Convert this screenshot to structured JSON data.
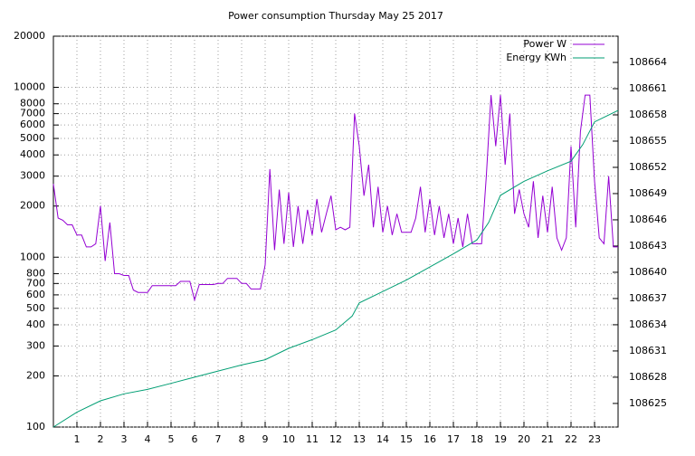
{
  "chart_data": {
    "type": "line",
    "title": "Power consumption Thursday May 25 2017",
    "xlim": [
      0,
      24
    ],
    "xticks": [
      1,
      2,
      3,
      4,
      5,
      6,
      7,
      8,
      9,
      10,
      11,
      12,
      13,
      14,
      15,
      16,
      17,
      18,
      19,
      20,
      21,
      22,
      23
    ],
    "ylim": [
      100,
      20000
    ],
    "log_y": true,
    "yticks": [
      100,
      200,
      300,
      400,
      500,
      600,
      700,
      800,
      1000,
      2000,
      3000,
      4000,
      5000,
      6000,
      7000,
      8000,
      10000,
      20000
    ],
    "y2lim": [
      108622.3,
      108667
    ],
    "y2ticks": [
      108625,
      108628,
      108631,
      108634,
      108637,
      108640,
      108643,
      108646,
      108649,
      108652,
      108655,
      108658,
      108661,
      108664
    ],
    "grid": true,
    "legend": "top right",
    "series": [
      {
        "name": "Power W",
        "color": "#9400d3",
        "x": [
          0,
          0.2,
          0.4,
          0.6,
          0.8,
          1,
          1.2,
          1.4,
          1.6,
          1.8,
          2,
          2.2,
          2.4,
          2.6,
          2.8,
          3,
          3.2,
          3.4,
          3.6,
          3.8,
          4,
          4.2,
          4.4,
          4.6,
          4.8,
          5,
          5.2,
          5.4,
          5.6,
          5.8,
          6,
          6.2,
          6.4,
          6.6,
          6.8,
          7,
          7.2,
          7.4,
          7.6,
          7.8,
          8,
          8.2,
          8.4,
          8.6,
          8.8,
          9,
          9.2,
          9.4,
          9.6,
          9.8,
          10,
          10.2,
          10.4,
          10.6,
          10.8,
          11,
          11.2,
          11.4,
          11.6,
          11.8,
          12,
          12.2,
          12.4,
          12.6,
          12.8,
          13,
          13.2,
          13.4,
          13.6,
          13.8,
          14,
          14.2,
          14.4,
          14.6,
          14.8,
          15,
          15.2,
          15.4,
          15.6,
          15.8,
          16,
          16.2,
          16.4,
          16.6,
          16.8,
          17,
          17.2,
          17.4,
          17.6,
          17.8,
          18,
          18.2,
          18.4,
          18.6,
          18.8,
          19,
          19.2,
          19.4,
          19.6,
          19.8,
          20,
          20.2,
          20.4,
          20.6,
          20.8,
          21,
          21.2,
          21.4,
          21.6,
          21.8,
          22,
          22.2,
          22.4,
          22.6,
          22.8,
          23,
          23.2,
          23.4,
          23.6,
          23.8,
          24
        ],
        "values": [
          2700,
          1700,
          1650,
          1550,
          1550,
          1350,
          1350,
          1150,
          1150,
          1200,
          2000,
          950,
          1600,
          800,
          800,
          780,
          780,
          640,
          620,
          620,
          620,
          680,
          680,
          680,
          680,
          680,
          680,
          720,
          720,
          720,
          560,
          690,
          690,
          690,
          690,
          700,
          700,
          750,
          750,
          750,
          700,
          700,
          650,
          650,
          650,
          900,
          3300,
          1100,
          2500,
          1200,
          2400,
          1150,
          2000,
          1200,
          1900,
          1350,
          2200,
          1400,
          1800,
          2300,
          1450,
          1500,
          1450,
          1500,
          7000,
          4500,
          2300,
          3500,
          1500,
          2600,
          1400,
          2000,
          1350,
          1800,
          1400,
          1400,
          1400,
          1700,
          2600,
          1400,
          2200,
          1350,
          2000,
          1300,
          1800,
          1200,
          1700,
          1150,
          1800,
          1200,
          1200,
          1200,
          3000,
          9000,
          4500,
          9000,
          3500,
          7000,
          1800,
          2500,
          1800,
          1500,
          2800,
          1300,
          2300,
          1400,
          2600,
          1300,
          1100,
          1300,
          4500,
          1500,
          5500,
          9000,
          9000,
          2800,
          1300,
          1200,
          3000,
          1150,
          1150
        ]
      },
      {
        "name": "Energy KWh",
        "color": "#009e73",
        "axis": "y2",
        "x": [
          0,
          1,
          2,
          3,
          4,
          5,
          6,
          7,
          8,
          9,
          10,
          11,
          12,
          12.7,
          13,
          14,
          15,
          16,
          17,
          18,
          18.5,
          19,
          20,
          21,
          22,
          22.5,
          23,
          24
        ],
        "values": [
          108622.3,
          108624,
          108625.3,
          108626.1,
          108626.6,
          108627.3,
          108628,
          108628.7,
          108629.4,
          108630,
          108631.3,
          108632.3,
          108633.4,
          108635,
          108636.5,
          108637.8,
          108639.1,
          108640.6,
          108642.1,
          108643.7,
          108645.7,
          108648.8,
          108650.4,
          108651.6,
          108652.7,
          108654.6,
          108657.2,
          108658.5
        ]
      }
    ]
  }
}
